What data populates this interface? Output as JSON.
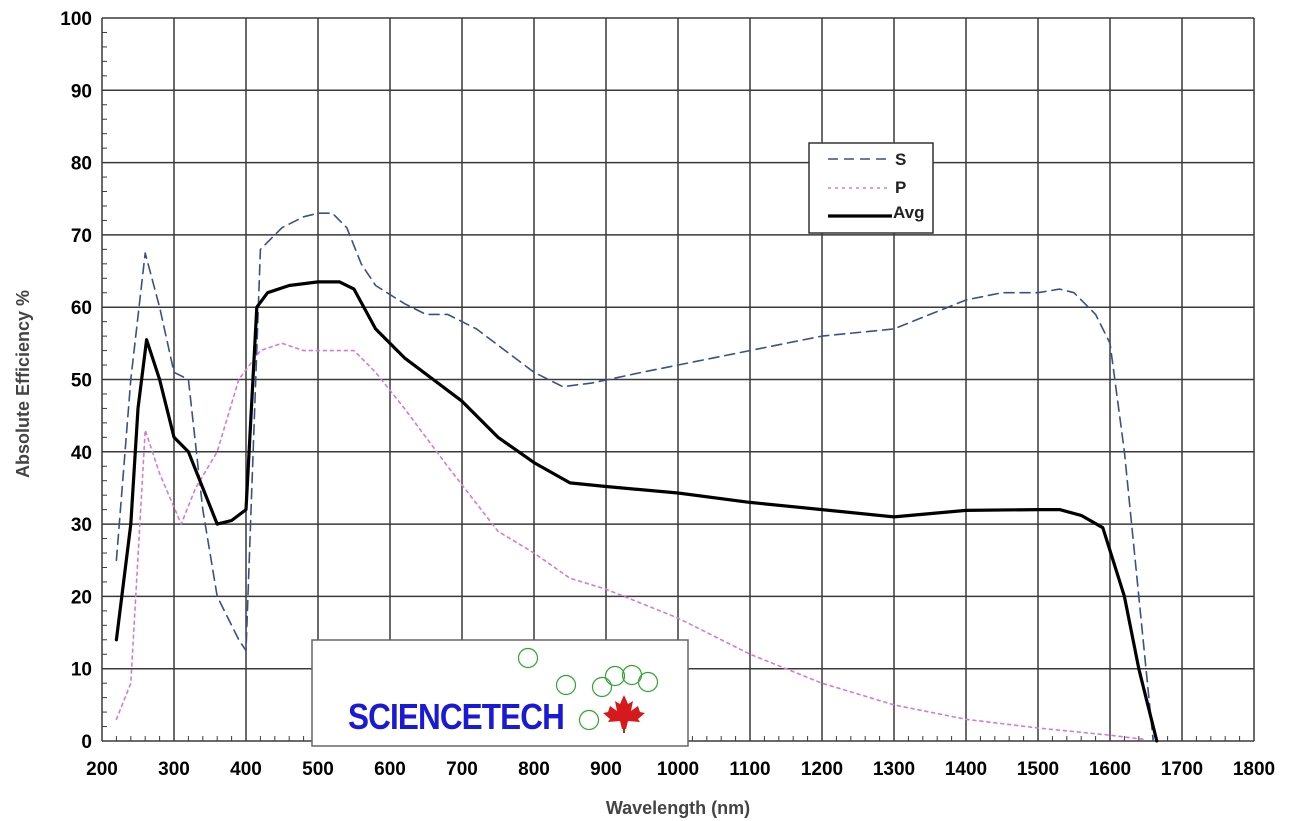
{
  "chart_data": {
    "type": "line",
    "title": "",
    "xlabel": "Wavelength (nm)",
    "ylabel": "Absolute Efficiency %",
    "xlim": [
      200,
      1800
    ],
    "ylim": [
      0,
      100
    ],
    "x_ticks": [
      200,
      300,
      400,
      500,
      600,
      700,
      800,
      900,
      1000,
      1100,
      1200,
      1300,
      1400,
      1500,
      1600,
      1700,
      1800
    ],
    "y_ticks": [
      0,
      10,
      20,
      30,
      40,
      50,
      60,
      70,
      80,
      90,
      100
    ],
    "grid": true,
    "legend_position": "upper right",
    "series": [
      {
        "name": "S",
        "color": "#3a4f8f",
        "style": "dashed",
        "points": [
          [
            220,
            25
          ],
          [
            240,
            50
          ],
          [
            260,
            67.5
          ],
          [
            280,
            60
          ],
          [
            300,
            51
          ],
          [
            320,
            50
          ],
          [
            340,
            32
          ],
          [
            360,
            20
          ],
          [
            390,
            14
          ],
          [
            400,
            12.5
          ],
          [
            420,
            68
          ],
          [
            450,
            71
          ],
          [
            480,
            72.5
          ],
          [
            500,
            73
          ],
          [
            520,
            73
          ],
          [
            540,
            71
          ],
          [
            560,
            66
          ],
          [
            580,
            63
          ],
          [
            620,
            60.5
          ],
          [
            650,
            59
          ],
          [
            680,
            59
          ],
          [
            720,
            57
          ],
          [
            760,
            54
          ],
          [
            800,
            51
          ],
          [
            840,
            49
          ],
          [
            880,
            49.5
          ],
          [
            950,
            51
          ],
          [
            1050,
            53
          ],
          [
            1150,
            55
          ],
          [
            1200,
            56
          ],
          [
            1250,
            56.5
          ],
          [
            1300,
            57
          ],
          [
            1350,
            59
          ],
          [
            1400,
            61
          ],
          [
            1450,
            62
          ],
          [
            1500,
            62
          ],
          [
            1530,
            62.5
          ],
          [
            1550,
            62
          ],
          [
            1580,
            59
          ],
          [
            1600,
            55
          ],
          [
            1620,
            40
          ],
          [
            1640,
            20
          ],
          [
            1660,
            0
          ]
        ]
      },
      {
        "name": "P",
        "color": "#d77ad0",
        "style": "dotted",
        "points": [
          [
            220,
            3
          ],
          [
            240,
            8
          ],
          [
            260,
            43
          ],
          [
            280,
            37
          ],
          [
            310,
            30
          ],
          [
            330,
            35
          ],
          [
            360,
            40
          ],
          [
            390,
            50
          ],
          [
            420,
            54
          ],
          [
            450,
            55
          ],
          [
            480,
            54
          ],
          [
            520,
            54
          ],
          [
            550,
            54
          ],
          [
            580,
            51
          ],
          [
            620,
            46
          ],
          [
            680,
            38
          ],
          [
            750,
            29
          ],
          [
            800,
            26
          ],
          [
            850,
            22.5
          ],
          [
            900,
            21
          ],
          [
            950,
            19
          ],
          [
            1000,
            17
          ],
          [
            1100,
            12
          ],
          [
            1200,
            8
          ],
          [
            1300,
            5
          ],
          [
            1400,
            3
          ],
          [
            1500,
            1.8
          ],
          [
            1600,
            0.8
          ],
          [
            1650,
            0.2
          ]
        ]
      },
      {
        "name": "Avg",
        "color": "#000000",
        "style": "solid",
        "points": [
          [
            220,
            14
          ],
          [
            240,
            30
          ],
          [
            250,
            46
          ],
          [
            262,
            55.5
          ],
          [
            280,
            50
          ],
          [
            300,
            42
          ],
          [
            320,
            40
          ],
          [
            340,
            35
          ],
          [
            360,
            30
          ],
          [
            380,
            30.5
          ],
          [
            400,
            32
          ],
          [
            415,
            60
          ],
          [
            430,
            62
          ],
          [
            460,
            63
          ],
          [
            500,
            63.5
          ],
          [
            530,
            63.5
          ],
          [
            550,
            62.5
          ],
          [
            580,
            57
          ],
          [
            620,
            53
          ],
          [
            660,
            50
          ],
          [
            700,
            47
          ],
          [
            750,
            42
          ],
          [
            800,
            38.5
          ],
          [
            850,
            35.7
          ],
          [
            900,
            35.2
          ],
          [
            1000,
            34.3
          ],
          [
            1100,
            33
          ],
          [
            1200,
            32
          ],
          [
            1300,
            31
          ],
          [
            1400,
            31.9
          ],
          [
            1500,
            32
          ],
          [
            1530,
            32
          ],
          [
            1560,
            31.2
          ],
          [
            1590,
            29.5
          ],
          [
            1620,
            20
          ],
          [
            1640,
            10
          ],
          [
            1665,
            0
          ]
        ]
      }
    ]
  },
  "logo": {
    "text": "SCIENCETECH",
    "icon": "maple-leaf-icon"
  },
  "colors": {
    "grid": "#3a3a3a",
    "logo_text": "#1a1ad6",
    "maple_leaf": "#d6191b",
    "bubbles": "#2fa52f"
  }
}
